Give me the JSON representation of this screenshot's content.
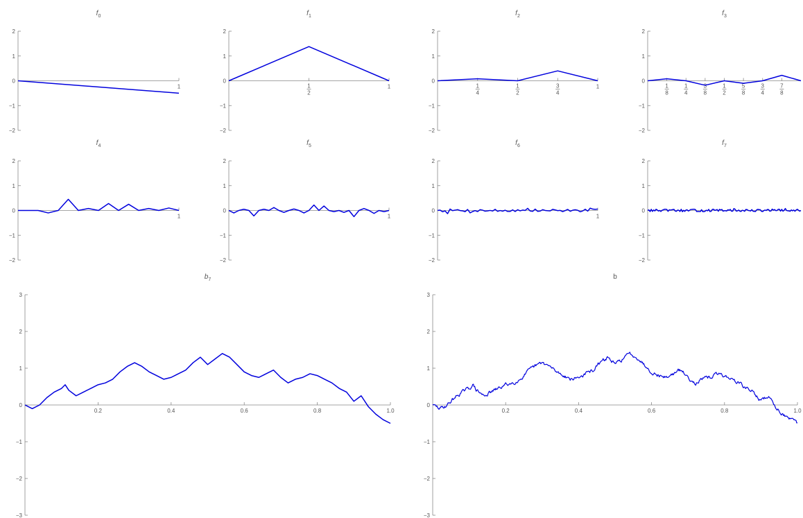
{
  "colors": {
    "line": "#0000dd",
    "axis": "#888888"
  },
  "chart_data": [
    {
      "type": "line",
      "title": "f0",
      "title_main": "f",
      "title_sub": "0",
      "xlim": [
        0,
        1
      ],
      "ylim": [
        -2,
        2
      ],
      "yticks": [
        2,
        1,
        0,
        -1,
        -2
      ],
      "xticks": [
        {
          "value": 1,
          "label": "1"
        }
      ],
      "x": [
        0,
        1
      ],
      "y": [
        0,
        -0.5
      ]
    },
    {
      "type": "line",
      "title": "f1",
      "title_main": "f",
      "title_sub": "1",
      "xlim": [
        0,
        1
      ],
      "ylim": [
        -2,
        2
      ],
      "yticks": [
        2,
        1,
        0,
        -1,
        -2
      ],
      "xticks": [
        {
          "value": 0.5,
          "num": "1",
          "den": "2"
        },
        {
          "value": 1,
          "label": "1"
        }
      ],
      "x": [
        0,
        0.5,
        1
      ],
      "y": [
        0,
        1.38,
        0
      ]
    },
    {
      "type": "line",
      "title": "f2",
      "title_main": "f",
      "title_sub": "2",
      "xlim": [
        0,
        1
      ],
      "ylim": [
        -2,
        2
      ],
      "yticks": [
        2,
        1,
        0,
        -1,
        -2
      ],
      "xticks": [
        {
          "value": 0.25,
          "num": "1",
          "den": "4"
        },
        {
          "value": 0.5,
          "num": "1",
          "den": "2"
        },
        {
          "value": 0.75,
          "num": "3",
          "den": "4"
        },
        {
          "value": 1,
          "label": "1"
        }
      ],
      "x": [
        0,
        0.25,
        0.5,
        0.75,
        1
      ],
      "y": [
        0,
        0.08,
        0,
        0.4,
        0
      ]
    },
    {
      "type": "line",
      "title": "f3",
      "title_main": "f",
      "title_sub": "3",
      "xlim": [
        0,
        1
      ],
      "ylim": [
        -2,
        2
      ],
      "yticks": [
        2,
        1,
        0,
        -1,
        -2
      ],
      "xticks": [
        {
          "value": 0.125,
          "num": "1",
          "den": "8"
        },
        {
          "value": 0.25,
          "num": "1",
          "den": "4"
        },
        {
          "value": 0.375,
          "num": "3",
          "den": "8"
        },
        {
          "value": 0.5,
          "num": "1",
          "den": "2"
        },
        {
          "value": 0.625,
          "num": "5",
          "den": "8"
        },
        {
          "value": 0.75,
          "num": "3",
          "den": "4"
        },
        {
          "value": 0.875,
          "num": "7",
          "den": "8"
        }
      ],
      "x": [
        0,
        0.125,
        0.25,
        0.375,
        0.5,
        0.625,
        0.75,
        0.875,
        1
      ],
      "y": [
        0,
        0.08,
        0,
        -0.18,
        0,
        -0.1,
        0,
        0.22,
        0
      ]
    },
    {
      "type": "line",
      "title": "f4",
      "title_main": "f",
      "title_sub": "4",
      "xlim": [
        0,
        1
      ],
      "ylim": [
        -2,
        2
      ],
      "yticks": [
        2,
        1,
        0,
        -1,
        -2
      ],
      "xticks": [
        {
          "value": 1,
          "label": "1"
        }
      ],
      "x": [
        0,
        0.0625,
        0.125,
        0.1875,
        0.25,
        0.3125,
        0.375,
        0.4375,
        0.5,
        0.5625,
        0.625,
        0.6875,
        0.75,
        0.8125,
        0.875,
        0.9375,
        1
      ],
      "y": [
        0,
        0,
        0,
        -0.1,
        0,
        0.45,
        0,
        0.08,
        0,
        0.28,
        0,
        0.25,
        0,
        0.08,
        0,
        0.1,
        0
      ]
    },
    {
      "type": "line",
      "title": "f5",
      "title_main": "f",
      "title_sub": "5",
      "xlim": [
        0,
        1
      ],
      "ylim": [
        -2,
        2
      ],
      "yticks": [
        2,
        1,
        0,
        -1,
        -2
      ],
      "xticks": [
        {
          "value": 1,
          "label": "1"
        }
      ],
      "x": [
        0,
        0.03125,
        0.0625,
        0.09375,
        0.125,
        0.15625,
        0.1875,
        0.21875,
        0.25,
        0.28125,
        0.3125,
        0.34375,
        0.375,
        0.40625,
        0.4375,
        0.46875,
        0.5,
        0.53125,
        0.5625,
        0.59375,
        0.625,
        0.65625,
        0.6875,
        0.71875,
        0.75,
        0.78125,
        0.8125,
        0.84375,
        0.875,
        0.90625,
        0.9375,
        0.96875,
        1
      ],
      "y": [
        0,
        -0.1,
        0,
        0.05,
        0,
        -0.22,
        0,
        0.05,
        0,
        0.12,
        0,
        -0.08,
        0,
        0.06,
        0,
        -0.1,
        0,
        0.22,
        0,
        0.18,
        0,
        -0.05,
        0,
        -0.08,
        0,
        -0.25,
        0,
        0.08,
        0,
        -0.12,
        0,
        -0.05,
        0
      ]
    },
    {
      "type": "line",
      "title": "f6",
      "title_main": "f",
      "title_sub": "6",
      "xlim": [
        0,
        1
      ],
      "ylim": [
        -2,
        2
      ],
      "yticks": [
        2,
        1,
        0,
        -1,
        -2
      ],
      "xticks": [
        {
          "value": 1,
          "label": "1"
        }
      ],
      "noise_seed": 7,
      "noise_amp": 0.06,
      "n": 64
    },
    {
      "type": "line",
      "title": "f7",
      "title_main": "f",
      "title_sub": "7",
      "xlim": [
        0,
        1
      ],
      "ylim": [
        -2,
        2
      ],
      "yticks": [
        2,
        1,
        0,
        -1,
        -2
      ],
      "xticks": [],
      "noise_seed": 13,
      "noise_amp": 0.05,
      "n": 128
    },
    {
      "type": "line",
      "title": "b7",
      "title_main": "b",
      "title_sub": "7",
      "xlim": [
        0,
        1
      ],
      "ylim": [
        -3,
        3
      ],
      "yticks": [
        3,
        2,
        1,
        0,
        -1,
        -2,
        -3
      ],
      "xticks": [
        {
          "value": 0.2,
          "label": "0.2"
        },
        {
          "value": 0.4,
          "label": "0.4"
        },
        {
          "value": 0.6,
          "label": "0.6"
        },
        {
          "value": 0.8,
          "label": "0.8"
        },
        {
          "value": 1.0,
          "label": "1.0"
        }
      ],
      "x": [
        0,
        0.02,
        0.04,
        0.06,
        0.08,
        0.1,
        0.11,
        0.12,
        0.14,
        0.16,
        0.18,
        0.2,
        0.22,
        0.24,
        0.26,
        0.28,
        0.3,
        0.32,
        0.34,
        0.36,
        0.38,
        0.4,
        0.42,
        0.44,
        0.46,
        0.48,
        0.5,
        0.52,
        0.54,
        0.56,
        0.58,
        0.6,
        0.62,
        0.64,
        0.66,
        0.68,
        0.7,
        0.72,
        0.74,
        0.76,
        0.78,
        0.8,
        0.82,
        0.84,
        0.86,
        0.88,
        0.9,
        0.92,
        0.94,
        0.96,
        0.98,
        1.0
      ],
      "y": [
        0,
        -0.1,
        0,
        0.2,
        0.35,
        0.45,
        0.55,
        0.4,
        0.25,
        0.35,
        0.45,
        0.55,
        0.6,
        0.7,
        0.9,
        1.05,
        1.15,
        1.05,
        0.9,
        0.8,
        0.7,
        0.75,
        0.85,
        0.95,
        1.15,
        1.3,
        1.1,
        1.25,
        1.4,
        1.3,
        1.1,
        0.9,
        0.8,
        0.75,
        0.85,
        0.95,
        0.75,
        0.6,
        0.7,
        0.75,
        0.85,
        0.8,
        0.7,
        0.6,
        0.45,
        0.35,
        0.1,
        0.25,
        -0.05,
        -0.25,
        -0.4,
        -0.5
      ]
    },
    {
      "type": "line",
      "title": "b",
      "title_main": "b",
      "title_sub": "",
      "xlim": [
        0,
        1
      ],
      "ylim": [
        -3,
        3
      ],
      "yticks": [
        3,
        2,
        1,
        0,
        -1,
        -2,
        -3
      ],
      "xticks": [
        {
          "value": 0.2,
          "label": "0.2"
        },
        {
          "value": 0.4,
          "label": "0.4"
        },
        {
          "value": 0.6,
          "label": "0.6"
        },
        {
          "value": 0.8,
          "label": "0.8"
        },
        {
          "value": 1.0,
          "label": "1.0"
        }
      ],
      "base_of": 8,
      "noise_seed": 29,
      "noise_amp": 0.08,
      "n": 520
    }
  ]
}
